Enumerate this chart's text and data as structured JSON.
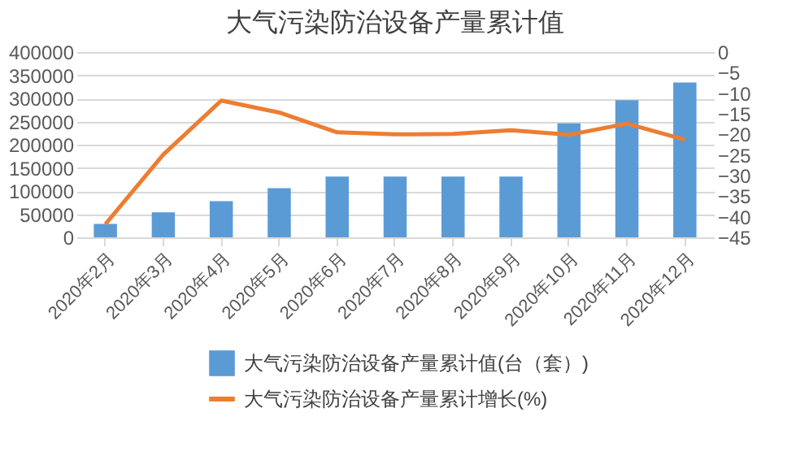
{
  "chart_data": {
    "type": "bar",
    "title": "大气污染防治设备产量累计值",
    "categories": [
      "2020年2月",
      "2020年3月",
      "2020年4月",
      "2020年5月",
      "2020年6月",
      "2020年7月",
      "2020年8月",
      "2020年9月",
      "2020年10月",
      "2020年11月",
      "2020年12月"
    ],
    "series": [
      {
        "name": "大气污染防治设备产量累计值(台（套）)",
        "color": "#5b9bd5",
        "values": [
          29000,
          54000,
          78000,
          106000,
          131000,
          131000,
          131000,
          131000,
          246000,
          296000,
          334000
        ]
      },
      {
        "name": "大气污染防治设备产量累计增长(%)",
        "type": "line",
        "axis": "y2",
        "color": "#ed7d31",
        "values": [
          -41.8,
          -24.9,
          -11.8,
          -14.7,
          -19.5,
          -20,
          -19.9,
          -19,
          -20.1,
          -17.4,
          -21.3
        ]
      }
    ],
    "ylim": [
      0,
      400000
    ],
    "yticks": [
      0,
      50000,
      100000,
      150000,
      200000,
      250000,
      300000,
      350000,
      400000
    ],
    "y2lim": [
      -45,
      0
    ],
    "y2ticks": [
      -45,
      -40,
      -35,
      -30,
      -25,
      -20,
      -15,
      -10,
      -5,
      0
    ],
    "grid": "y",
    "legend": "bottom",
    "marker": "none",
    "line_style": "solid"
  }
}
